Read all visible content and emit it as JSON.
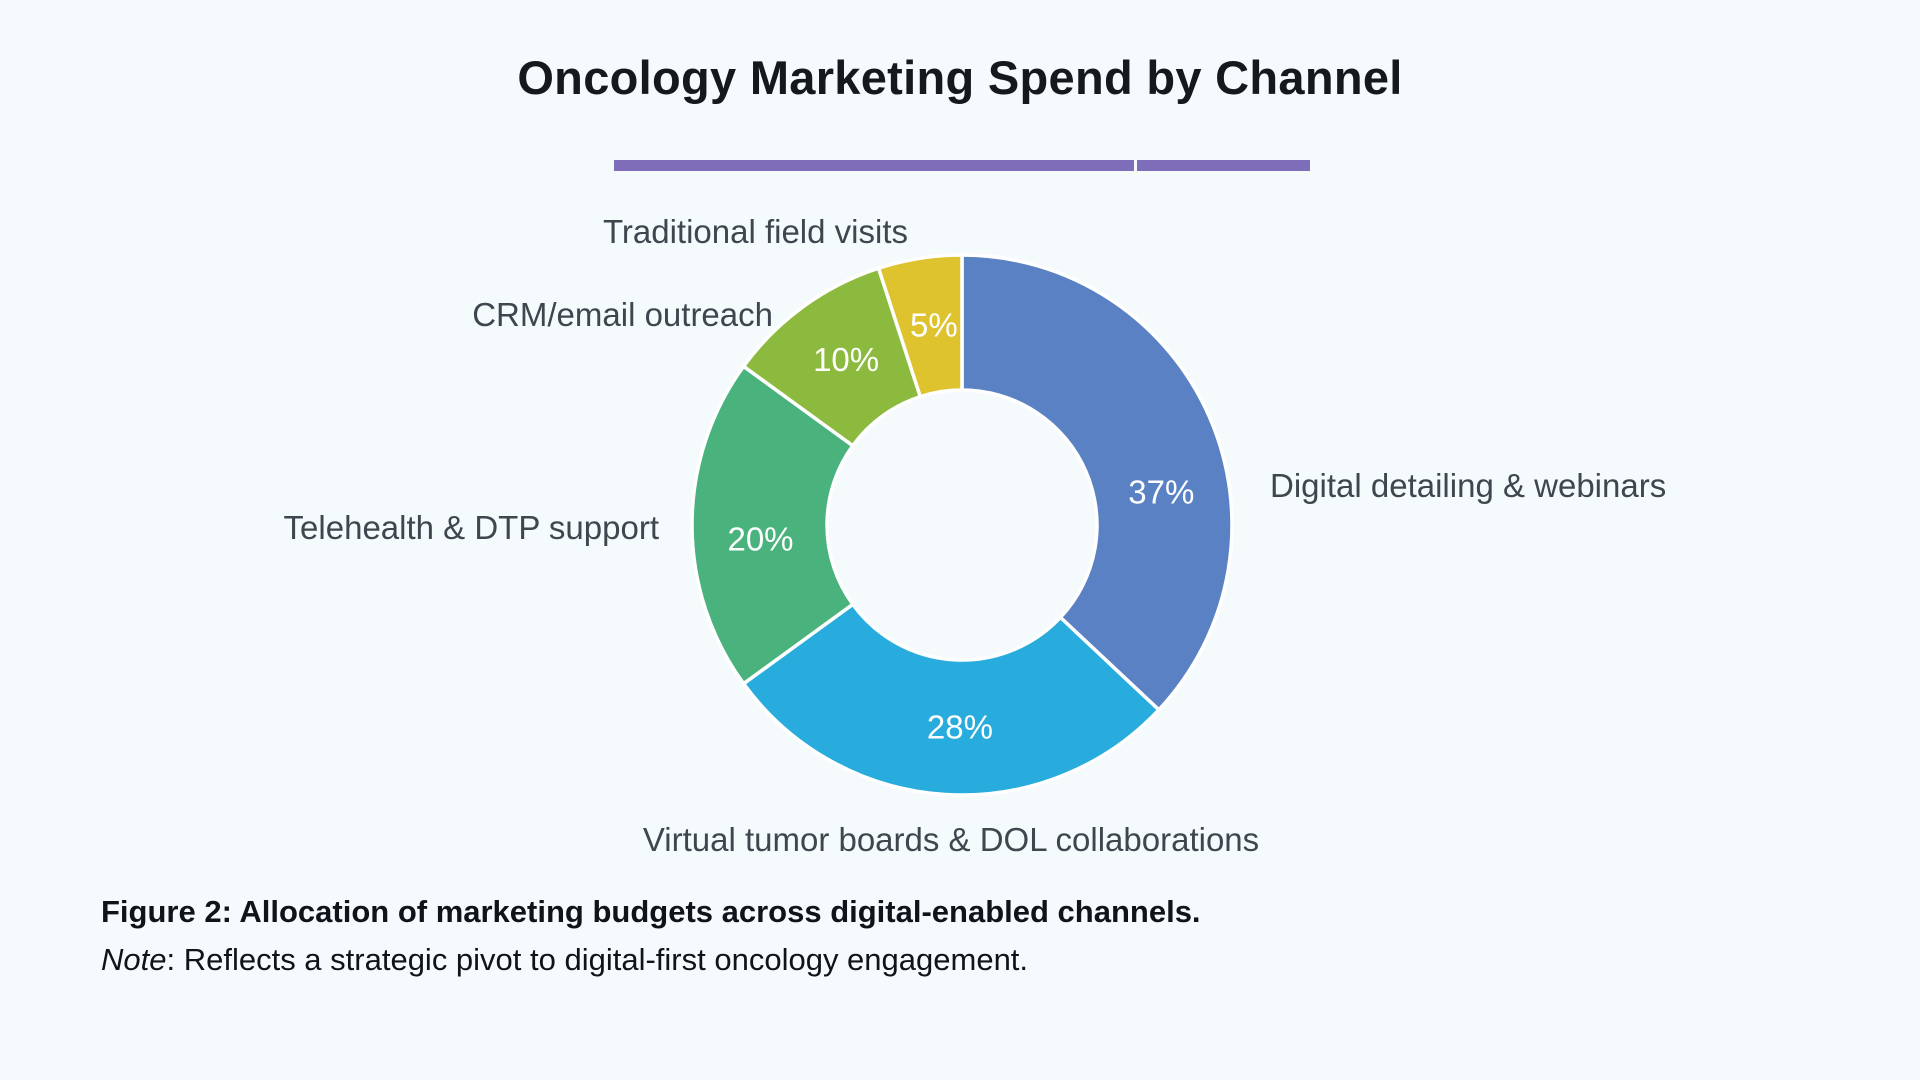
{
  "page": {
    "background": "#f5fafd"
  },
  "header": {
    "title": "Oncology Marketing Spend by Channel",
    "underline_color": "#7e6eb9"
  },
  "chart_data": {
    "type": "pie",
    "subtype": "donut",
    "title": "Oncology Marketing Spend by Channel",
    "unit": "%",
    "start_angle_deg": 0,
    "direction": "clockwise",
    "inner_radius_ratio": 0.5,
    "categories": [
      "Digital detailing & webinars",
      "Virtual tumor boards & DOL collaborations",
      "Telehealth & DTP support",
      "CRM/email outreach",
      "Traditional field visits"
    ],
    "values": [
      37,
      28,
      20,
      10,
      5
    ],
    "segments": [
      {
        "label": "Digital detailing & webinars",
        "value": 37,
        "pct_label": "37%",
        "color": "#5b81c5"
      },
      {
        "label": "Virtual tumor boards & DOL collaborations",
        "value": 28,
        "pct_label": "28%",
        "color": "#28acdd"
      },
      {
        "label": "Telehealth & DTP support",
        "value": 20,
        "pct_label": "20%",
        "color": "#49b27d"
      },
      {
        "label": "CRM/email outreach",
        "value": 10,
        "pct_label": "10%",
        "color": "#8cba3e"
      },
      {
        "label": "Traditional field visits",
        "value": 5,
        "pct_label": "5%",
        "color": "#dfc32e"
      }
    ],
    "slice_border_color": "#ffffff",
    "value_label_color": "#ffffff",
    "category_label_color": "#3e474e",
    "legend_position": "outside-labels"
  },
  "caption": {
    "figure_bold": "Figure 2: Allocation of marketing budgets across digital-enabled channels.",
    "note_italic": "Note",
    "note_rest": ": Reflects a strategic pivot to digital-first oncology engagement."
  }
}
